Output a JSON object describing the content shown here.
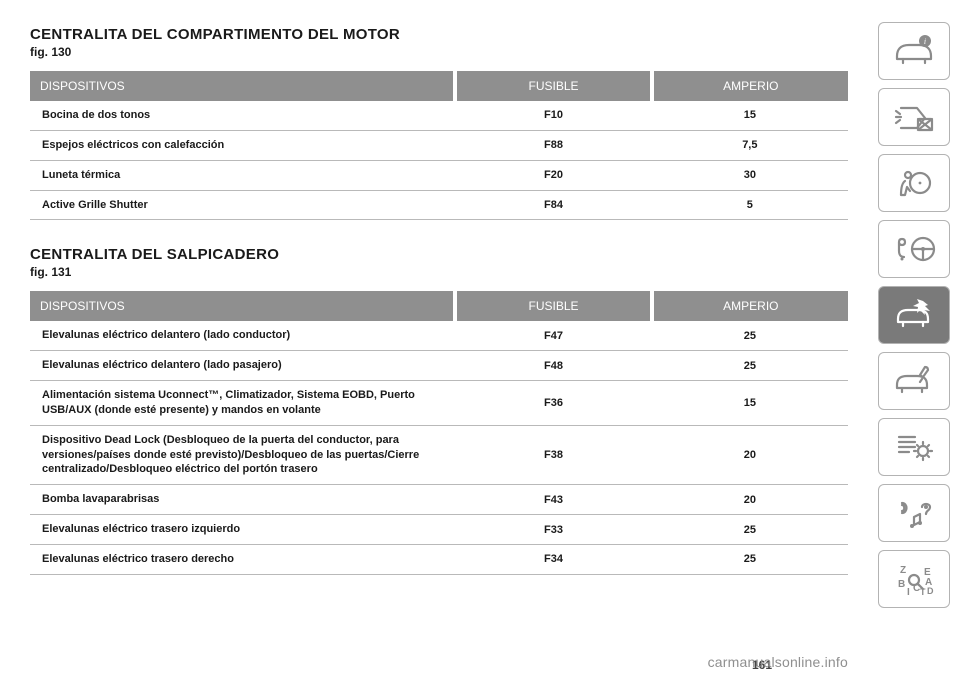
{
  "section1": {
    "title": "CENTRALITA DEL COMPARTIMENTO DEL MOTOR",
    "figref": "fig. 130",
    "headers": {
      "c1": "DISPOSITIVOS",
      "c2": "FUSIBLE",
      "c3": "AMPERIO"
    },
    "rows": [
      {
        "d": "Bocina de dos tonos",
        "f": "F10",
        "a": "15"
      },
      {
        "d": "Espejos eléctricos con calefacción",
        "f": "F88",
        "a": "7,5"
      },
      {
        "d": "Luneta térmica",
        "f": "F20",
        "a": "30"
      },
      {
        "d": "Active Grille Shutter",
        "f": "F84",
        "a": "5"
      }
    ]
  },
  "section2": {
    "title": "CENTRALITA DEL SALPICADERO",
    "figref": "fig. 131",
    "headers": {
      "c1": "DISPOSITIVOS",
      "c2": "FUSIBLE",
      "c3": "AMPERIO"
    },
    "rows": [
      {
        "d": "Elevalunas eléctrico delantero (lado conductor)",
        "f": "F47",
        "a": "25"
      },
      {
        "d": "Elevalunas eléctrico delantero (lado pasajero)",
        "f": "F48",
        "a": "25"
      },
      {
        "d": "Alimentación sistema Uconnect™, Climatizador, Sistema EOBD, Puerto USB/AUX (donde esté presente) y mandos en volante",
        "f": "F36",
        "a": "15"
      },
      {
        "d": "Dispositivo Dead Lock (Desbloqueo de la puerta del conductor, para versiones/países donde esté previsto)/Desbloqueo de las puertas/Cierre centralizado/Desbloqueo eléctrico del portón trasero",
        "f": "F38",
        "a": "20"
      },
      {
        "d": "Bomba lavaparabrisas",
        "f": "F43",
        "a": "20"
      },
      {
        "d": "Elevalunas eléctrico trasero izquierdo",
        "f": "F33",
        "a": "25"
      },
      {
        "d": "Elevalunas eléctrico trasero derecho",
        "f": "F34",
        "a": "25"
      }
    ]
  },
  "footer": {
    "url": "carmanualsonline.info",
    "page": "161"
  },
  "sidebar": {
    "tabs": [
      {
        "name": "tab-info",
        "active": false
      },
      {
        "name": "tab-lights",
        "active": false
      },
      {
        "name": "tab-airbag",
        "active": false
      },
      {
        "name": "tab-controls",
        "active": false
      },
      {
        "name": "tab-collision",
        "active": true
      },
      {
        "name": "tab-service",
        "active": false
      },
      {
        "name": "tab-settings",
        "active": false
      },
      {
        "name": "tab-media",
        "active": false
      },
      {
        "name": "tab-index",
        "active": false
      }
    ]
  },
  "colors": {
    "header_bg": "#8f8f8f",
    "header_text": "#ffffff",
    "row_border": "#b9b9b9",
    "tab_border": "#b3b3b3",
    "tab_active_bg": "#7a7a7a",
    "icon_color": "#8b8b8b",
    "footer_color": "#8f8f8f"
  }
}
